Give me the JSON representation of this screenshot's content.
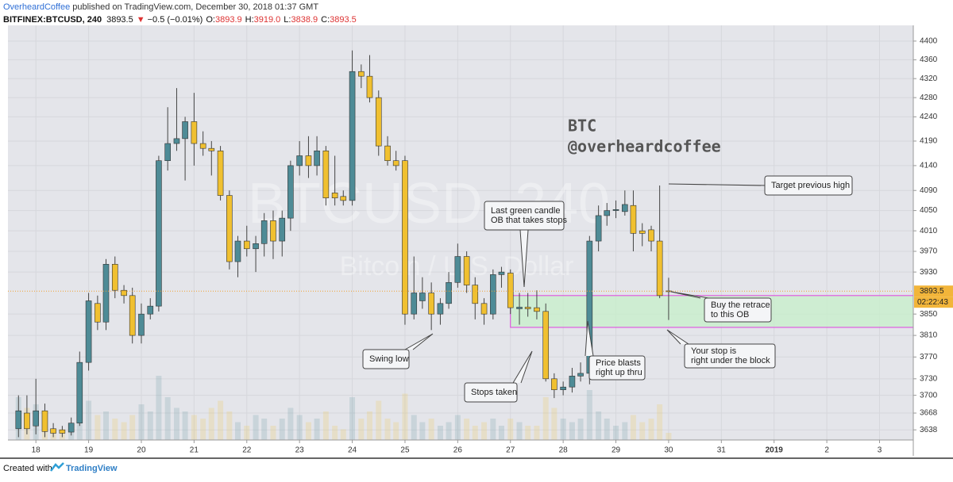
{
  "header": {
    "author": "OverheardCoffee",
    "published": " published on TradingView.com, December 30, 2018 01:37 GMT",
    "symbol": "BITFINEX:BTCUSD, 240",
    "last": "3893.5",
    "arrow": "▼",
    "change": "−0.5 (−0.01%)",
    "ohlc": [
      {
        "label": "O:",
        "value": "3893.9"
      },
      {
        "label": "H:",
        "value": "3919.0"
      },
      {
        "label": "L:",
        "value": "3838.9"
      },
      {
        "label": "C:",
        "value": "3893.5"
      }
    ]
  },
  "footer": {
    "text": "Created with",
    "brand": "TradingView"
  },
  "chart_data": {
    "type": "candlestick",
    "title": [
      "BTC",
      "@overheardcoffee"
    ],
    "watermark": [
      "BTCUSD, 240",
      "Bitcoin / U.S. Dollar"
    ],
    "log": true,
    "grid": true,
    "up_color": "#4e8b96",
    "down_color": "#f0c030",
    "x": [
      17.67,
      17.83,
      18,
      18.17,
      18.33,
      18.5,
      18.67,
      18.83,
      19,
      19.17,
      19.33,
      19.5,
      19.67,
      19.83,
      20,
      20.17,
      20.33,
      20.5,
      20.67,
      20.83,
      21,
      21.17,
      21.33,
      21.5,
      21.67,
      21.83,
      22,
      22.17,
      22.33,
      22.5,
      22.67,
      22.83,
      23,
      23.17,
      23.33,
      23.5,
      23.67,
      23.83,
      24,
      24.17,
      24.33,
      24.5,
      24.67,
      24.83,
      25,
      25.17,
      25.33,
      25.5,
      25.67,
      25.83,
      26,
      26.17,
      26.33,
      26.5,
      26.67,
      26.83,
      27,
      27.17,
      27.33,
      27.5,
      27.67,
      27.83,
      28,
      28.17,
      28.33,
      28.5,
      28.67,
      28.83,
      29,
      29.17,
      29.33,
      29.5,
      29.67,
      29.83,
      30
    ],
    "open": [
      3640,
      3668,
      3645,
      3672,
      3640,
      3638,
      3634,
      3650,
      3760,
      3870,
      3835,
      3945,
      3895,
      3885,
      3810,
      3850,
      3865,
      4150,
      4185,
      4195,
      4230,
      4185,
      4175,
      4170,
      4080,
      3950,
      3990,
      3975,
      3985,
      4030,
      3990,
      4035,
      4140,
      4160,
      4140,
      4170,
      4085,
      4078,
      4070,
      4335,
      4325,
      4280,
      4180,
      4150,
      4150,
      3850,
      3875,
      3890,
      3850,
      3870,
      3910,
      3960,
      3905,
      3870,
      3850,
      3925,
      3928,
      3860,
      3863,
      3862,
      3855,
      3730,
      3710,
      3715,
      3735,
      3740,
      3990,
      4040,
      4050,
      4048,
      4060,
      4010,
      4012,
      3990,
      3893.9
    ],
    "high": [
      3700,
      3700,
      3730,
      3685,
      3650,
      3645,
      3660,
      3780,
      3890,
      3885,
      3955,
      3960,
      3905,
      3900,
      3870,
      3880,
      4160,
      4260,
      4300,
      4240,
      4290,
      4210,
      4190,
      4180,
      4090,
      4000,
      4020,
      4000,
      4045,
      4050,
      4050,
      4150,
      4190,
      4200,
      4200,
      4180,
      4160,
      4090,
      4380,
      4350,
      4370,
      4295,
      4200,
      4170,
      4160,
      3960,
      3920,
      3910,
      3880,
      3930,
      3985,
      3970,
      3920,
      3880,
      3935,
      3940,
      3935,
      3890,
      3890,
      3895,
      3870,
      3740,
      3725,
      3750,
      3760,
      4000,
      4060,
      4065,
      4070,
      4090,
      4090,
      4025,
      4020,
      4100,
      3919
    ],
    "low": [
      3625,
      3630,
      3630,
      3625,
      3625,
      3625,
      3628,
      3645,
      3745,
      3820,
      3820,
      3880,
      3870,
      3795,
      3795,
      3840,
      3855,
      4130,
      4170,
      4110,
      4140,
      4160,
      4120,
      4070,
      3935,
      3920,
      3960,
      3930,
      3960,
      3955,
      3960,
      4010,
      4120,
      4115,
      4120,
      4060,
      4060,
      4060,
      4060,
      4300,
      4270,
      4160,
      4140,
      4130,
      3830,
      3840,
      3860,
      3820,
      3830,
      3860,
      3900,
      3890,
      3840,
      3830,
      3840,
      3900,
      3850,
      3830,
      3845,
      3840,
      3725,
      3695,
      3700,
      3705,
      3725,
      3720,
      3970,
      4020,
      4035,
      4040,
      3970,
      3980,
      3970,
      3880,
      3838.9
    ],
    "close": [
      3672,
      3640,
      3672,
      3635,
      3632,
      3632,
      3650,
      3760,
      3875,
      3835,
      3945,
      3895,
      3885,
      3810,
      3850,
      3865,
      4150,
      4185,
      4195,
      4230,
      4185,
      4175,
      4170,
      4080,
      3950,
      3990,
      3975,
      3985,
      4030,
      3990,
      4035,
      4140,
      4160,
      4140,
      4170,
      4075,
      4075,
      4070,
      4335,
      4325,
      4280,
      4180,
      4150,
      4140,
      3850,
      3890,
      3890,
      3850,
      3870,
      3910,
      3960,
      3905,
      3870,
      3850,
      3925,
      3930,
      3862,
      3863,
      3860,
      3855,
      3730,
      3710,
      3715,
      3735,
      3740,
      3990,
      4040,
      4050,
      4052,
      4062,
      4005,
      4005,
      3990,
      3885,
      3893.5
    ],
    "volume": [
      60,
      45,
      50,
      30,
      10,
      15,
      20,
      70,
      55,
      35,
      40,
      30,
      25,
      35,
      50,
      40,
      90,
      60,
      45,
      40,
      35,
      30,
      45,
      55,
      40,
      25,
      20,
      35,
      30,
      20,
      30,
      45,
      35,
      25,
      30,
      40,
      20,
      15,
      60,
      30,
      40,
      55,
      30,
      25,
      65,
      35,
      25,
      30,
      20,
      25,
      35,
      30,
      20,
      25,
      30,
      20,
      30,
      25,
      20,
      20,
      60,
      45,
      30,
      25,
      30,
      70,
      40,
      30,
      20,
      25,
      35,
      25,
      30,
      50,
      10
    ],
    "last_price": 3893.5,
    "countdown": "02:22:43",
    "zone": {
      "low": 3825,
      "high": 3885,
      "x_start": 27,
      "color": "#c8efcc",
      "border": "#e040e0"
    },
    "xlim": [
      17.47,
      34.64
    ],
    "xticks": [
      18,
      19,
      20,
      21,
      22,
      23,
      24,
      25,
      26,
      27,
      28,
      29,
      30,
      31,
      {
        "value": 32,
        "label": "2019"
      },
      {
        "value": 33,
        "label": "2"
      },
      {
        "value": 34,
        "label": "3"
      }
    ],
    "ylim": [
      3620,
      4434
    ],
    "yticks": [
      4400,
      4360,
      4320,
      4280,
      4240,
      4190,
      4140,
      4090,
      4050,
      4010,
      3970,
      3930,
      3850,
      3810,
      3770,
      3730,
      3700,
      3668,
      3638
    ],
    "annotations": [
      {
        "lines": [
          "Last green candle",
          "OB that takes stops"
        ]
      },
      {
        "lines": [
          "Swing low"
        ]
      },
      {
        "lines": [
          "Stops taken"
        ]
      },
      {
        "lines": [
          "Price blasts",
          "right up thru"
        ]
      },
      {
        "lines": [
          "Buy the retrace",
          "to this OB"
        ]
      },
      {
        "lines": [
          "Your stop is",
          "right under the block"
        ]
      },
      {
        "lines": [
          "Target previous high"
        ]
      }
    ]
  }
}
